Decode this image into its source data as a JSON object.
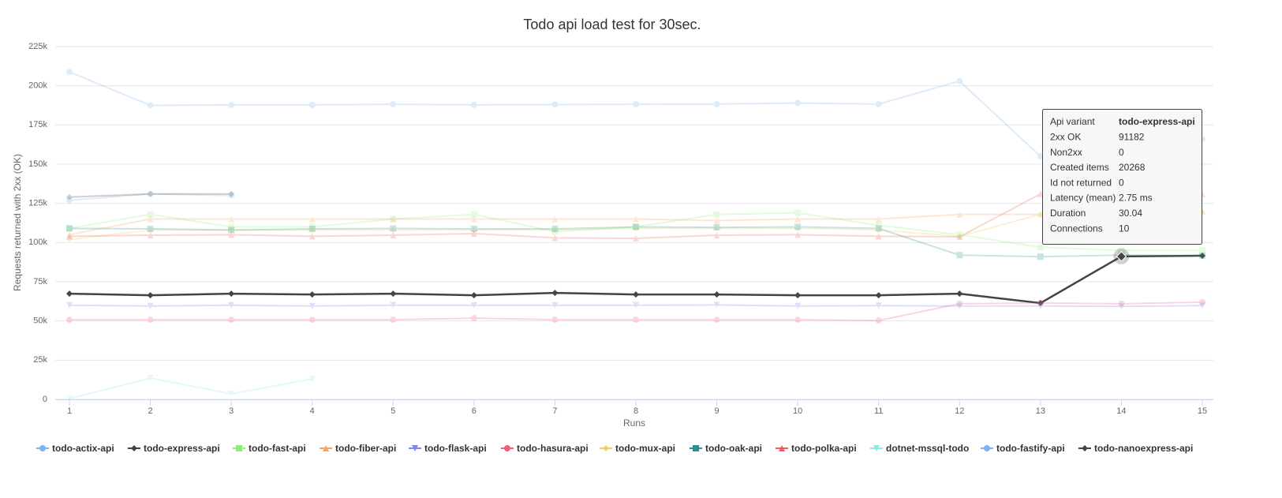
{
  "chart_data": {
    "type": "line",
    "title": "Todo api load test for 30sec.",
    "x_label": "Runs",
    "y_label": "Requests returned with 2xx (OK)",
    "categories": [
      "1",
      "2",
      "3",
      "4",
      "5",
      "6",
      "7",
      "8",
      "9",
      "10",
      "11",
      "12",
      "13",
      "14",
      "15"
    ],
    "ylim": [
      0,
      225000
    ],
    "yticks": [
      0,
      {
        "value": 25000,
        "label": "25k"
      },
      {
        "value": 50000,
        "label": "50k"
      },
      {
        "value": 75000,
        "label": "75k"
      },
      {
        "value": 100000,
        "label": "100k"
      },
      {
        "value": 125000,
        "label": "125k"
      },
      {
        "value": 150000,
        "label": "150k"
      },
      {
        "value": 175000,
        "label": "175k"
      },
      {
        "value": 200000,
        "label": "200k"
      },
      {
        "value": 225000,
        "label": "225k"
      }
    ],
    "grid": true,
    "legend": "bottom",
    "series": [
      {
        "name": "todo-actix-api",
        "color": "#7cb5ec",
        "marker": "circle",
        "values": [
          208900,
          187500,
          187800,
          187800,
          188200,
          187800,
          188000,
          188200,
          188300,
          189000,
          188300,
          203000,
          155000,
          165000,
          166000
        ]
      },
      {
        "name": "todo-express-api",
        "color": "#434348",
        "marker": "diamond",
        "values": [
          67400,
          66400,
          67400,
          66900,
          67400,
          66400,
          67900,
          66900,
          66900,
          66400,
          66400,
          67400,
          61400,
          91182,
          91600
        ]
      },
      {
        "name": "todo-fast-api",
        "color": "#90ed7d",
        "marker": "square",
        "values": [
          109000,
          118000,
          110000,
          110000,
          115000,
          118000,
          107000,
          110000,
          118000,
          119000,
          111000,
          105000,
          97000,
          95000,
          95000
        ]
      },
      {
        "name": "todo-fiber-api",
        "color": "#f7a35c",
        "marker": "triangle",
        "values": [
          105000,
          115000,
          115000,
          115000,
          115000,
          115000,
          115000,
          115000,
          114000,
          115000,
          115000,
          118000,
          118000,
          119000,
          120000
        ]
      },
      {
        "name": "todo-flask-api",
        "color": "#8085e9",
        "marker": "triangle-down",
        "values": [
          60000,
          59500,
          60000,
          59500,
          60000,
          60000,
          60000,
          60000,
          60200,
          59500,
          59800,
          59500,
          59500,
          59300,
          59800
        ]
      },
      {
        "name": "todo-hasura-api",
        "color": "#f15c80",
        "marker": "circle",
        "values": [
          50800,
          50800,
          50800,
          50800,
          50800,
          51800,
          50800,
          50800,
          50800,
          50800,
          50300,
          61000,
          61400,
          61000,
          62000
        ]
      },
      {
        "name": "todo-mux-api",
        "color": "#e4d354",
        "marker": "diamond",
        "values": [
          102000,
          108000,
          108000,
          108000,
          108000,
          108000,
          108000,
          109000,
          109000,
          109000,
          108000,
          104000,
          118000,
          119000,
          119000
        ]
      },
      {
        "name": "todo-oak-api",
        "color": "#2b908f",
        "marker": "square",
        "values": [
          109000,
          108700,
          108000,
          108700,
          109000,
          108700,
          108700,
          110000,
          109700,
          110000,
          109000,
          92000,
          91000,
          92000,
          91600
        ]
      },
      {
        "name": "todo-polka-api",
        "color": "#f45b5b",
        "marker": "triangle",
        "values": [
          104000,
          104700,
          105000,
          104000,
          104700,
          105700,
          103000,
          102700,
          104700,
          105000,
          104000,
          103700,
          131000,
          131000,
          131000
        ]
      },
      {
        "name": "dotnet-mssql-todo",
        "color": "#91e8e1",
        "marker": "triangle-down",
        "values": [
          500,
          13600,
          3500,
          13000,
          null,
          null,
          null,
          null,
          null,
          null,
          null,
          null,
          null,
          null,
          null
        ]
      },
      {
        "name": "todo-fastify-api",
        "color": "#7cb5ec",
        "marker": "circle",
        "values": [
          127000,
          131000,
          130000,
          null,
          null,
          null,
          null,
          null,
          null,
          null,
          null,
          null,
          null,
          null,
          null
        ]
      },
      {
        "name": "todo-nanoexpress-api",
        "color": "#434348",
        "marker": "diamond",
        "values": [
          129000,
          131000,
          131000,
          null,
          null,
          null,
          null,
          null,
          null,
          null,
          null,
          null,
          null,
          null,
          null
        ]
      }
    ],
    "tooltip": {
      "rows": [
        [
          "Api variant",
          "todo-express-api"
        ],
        [
          "2xx OK",
          "91182"
        ],
        [
          "Non2xx",
          "0"
        ],
        [
          "Created items",
          "20268"
        ],
        [
          "Id not returned",
          "0"
        ],
        [
          "Latency (mean)",
          "2.75 ms"
        ],
        [
          "Duration",
          "30.04"
        ],
        [
          "Connections",
          "10"
        ]
      ]
    }
  }
}
